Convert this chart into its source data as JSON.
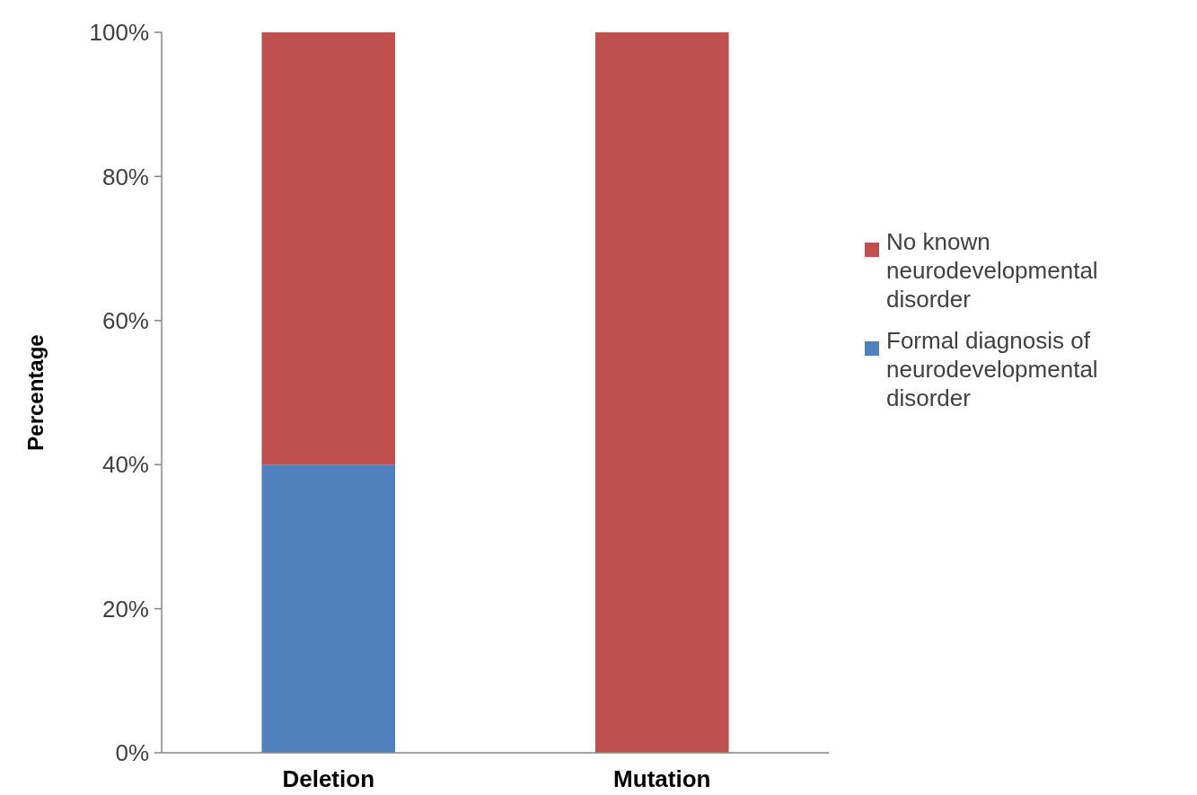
{
  "chart_data": {
    "type": "bar",
    "stacked": true,
    "ylabel": "Percentage",
    "categories": [
      "Deletion",
      "Mutation"
    ],
    "series": [
      {
        "name": "Formal diagnosis of neurodevelopmental disorder",
        "color": "#4f81bd",
        "values": [
          40,
          0
        ]
      },
      {
        "name": "No known neurodevelopmental disorder",
        "color": "#c0504d",
        "values": [
          60,
          100
        ]
      }
    ],
    "ylim": [
      0,
      100
    ],
    "yticks": [
      {
        "value": 0,
        "label": "0%"
      },
      {
        "value": 20,
        "label": "20%"
      },
      {
        "value": 40,
        "label": "40%"
      },
      {
        "value": 60,
        "label": "60%"
      },
      {
        "value": 80,
        "label": "80%"
      },
      {
        "value": 100,
        "label": "100%"
      }
    ],
    "grid": false,
    "legend": "right"
  }
}
